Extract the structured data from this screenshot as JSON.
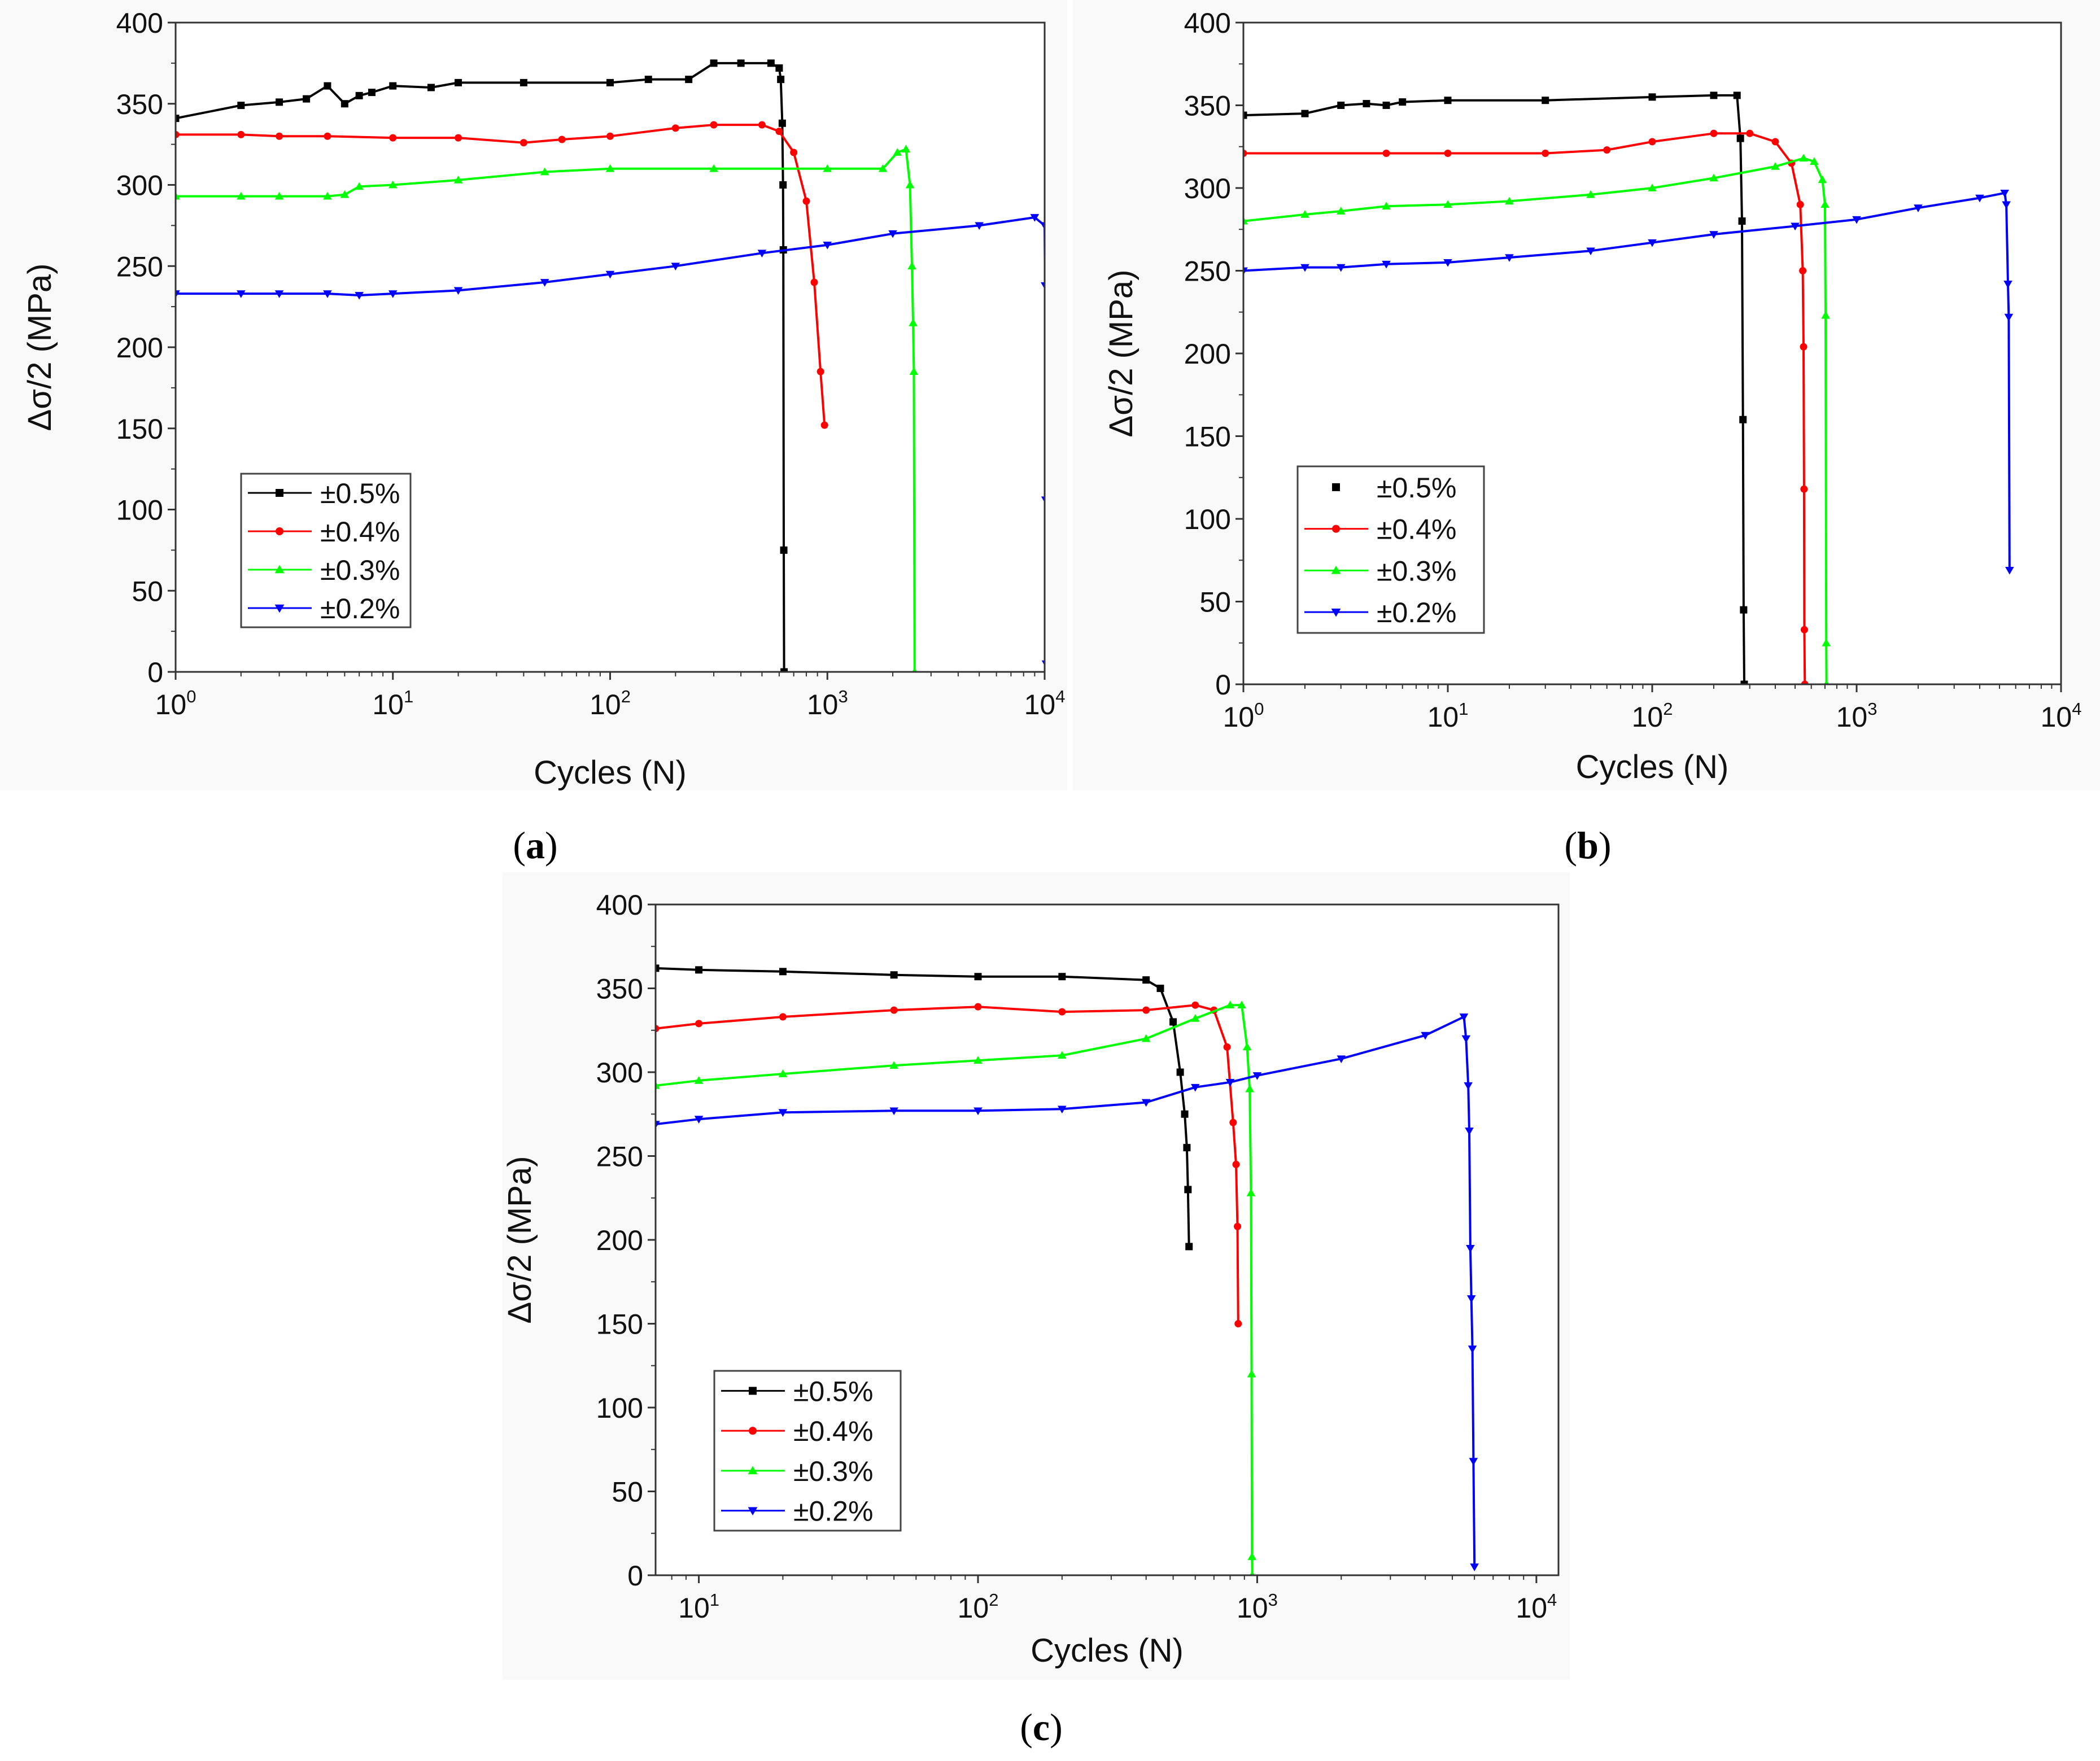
{
  "figure": {
    "panels": [
      "(a)",
      "(b)",
      "(c)"
    ]
  },
  "colors": {
    "black": "#000000",
    "red": "#ff0000",
    "green": "#00ff00",
    "blue": "#0000ff",
    "frame": "#333333"
  },
  "chart_data": [
    {
      "panel": "a",
      "caption_letter": "a",
      "type": "line",
      "xscale": "log",
      "xlabel": "Cycles (N)",
      "ylabel": "Δσ/2 (MPa)",
      "xlim": [
        1,
        10000
      ],
      "ylim": [
        0,
        400
      ],
      "xticks": [
        {
          "base": "10",
          "exp": "0",
          "value": 1
        },
        {
          "base": "10",
          "exp": "1",
          "value": 10
        },
        {
          "base": "10",
          "exp": "2",
          "value": 100
        },
        {
          "base": "10",
          "exp": "3",
          "value": 1000
        },
        {
          "base": "10",
          "exp": "4",
          "value": 10000
        }
      ],
      "yticks": [
        "0",
        "50",
        "100",
        "150",
        "200",
        "250",
        "300",
        "350",
        "400"
      ],
      "legend_position": "bottom-left",
      "legend_line_style": "line-marker",
      "series": [
        {
          "name": "±0.5%",
          "color": "#000000",
          "marker": "square",
          "points": [
            [
              1,
              341
            ],
            [
              2,
              349
            ],
            [
              3,
              351
            ],
            [
              4,
              353
            ],
            [
              5,
              361
            ],
            [
              6,
              350
            ],
            [
              7,
              355
            ],
            [
              8,
              357
            ],
            [
              10,
              361
            ],
            [
              15,
              360
            ],
            [
              20,
              363
            ],
            [
              40,
              363
            ],
            [
              100,
              363
            ],
            [
              150,
              365
            ],
            [
              230,
              365
            ],
            [
              300,
              375
            ],
            [
              400,
              375
            ],
            [
              550,
              375
            ],
            [
              600,
              372
            ],
            [
              610,
              365
            ],
            [
              620,
              338
            ],
            [
              625,
              300
            ],
            [
              627,
              260
            ],
            [
              630,
              75
            ],
            [
              632,
              0
            ]
          ]
        },
        {
          "name": "±0.4%",
          "color": "#ff0000",
          "marker": "circle",
          "points": [
            [
              1,
              331
            ],
            [
              2,
              331
            ],
            [
              3,
              330
            ],
            [
              5,
              330
            ],
            [
              10,
              329
            ],
            [
              20,
              329
            ],
            [
              40,
              326
            ],
            [
              60,
              328
            ],
            [
              100,
              330
            ],
            [
              200,
              335
            ],
            [
              300,
              337
            ],
            [
              500,
              337
            ],
            [
              600,
              333
            ],
            [
              700,
              320
            ],
            [
              800,
              290
            ],
            [
              870,
              240
            ],
            [
              930,
              185
            ],
            [
              970,
              152
            ]
          ]
        },
        {
          "name": "±0.3%",
          "color": "#00ff00",
          "marker": "triangle-up",
          "points": [
            [
              1,
              293
            ],
            [
              2,
              293
            ],
            [
              3,
              293
            ],
            [
              5,
              293
            ],
            [
              6,
              294
            ],
            [
              7,
              299
            ],
            [
              10,
              300
            ],
            [
              20,
              303
            ],
            [
              50,
              308
            ],
            [
              100,
              310
            ],
            [
              300,
              310
            ],
            [
              1000,
              310
            ],
            [
              1800,
              310
            ],
            [
              2100,
              320
            ],
            [
              2300,
              322
            ],
            [
              2400,
              300
            ],
            [
              2450,
              250
            ],
            [
              2480,
              215
            ],
            [
              2500,
              185
            ],
            [
              2520,
              0
            ]
          ]
        },
        {
          "name": "±0.2%",
          "color": "#0000ff",
          "marker": "triangle-down",
          "points": [
            [
              1,
              233
            ],
            [
              2,
              233
            ],
            [
              3,
              233
            ],
            [
              5,
              233
            ],
            [
              7,
              232
            ],
            [
              10,
              233
            ],
            [
              20,
              235
            ],
            [
              50,
              240
            ],
            [
              100,
              245
            ],
            [
              200,
              250
            ],
            [
              500,
              258
            ],
            [
              1000,
              263
            ],
            [
              2000,
              270
            ],
            [
              5000,
              275
            ],
            [
              9000,
              280
            ],
            [
              10000,
              275
            ],
            [
              10050,
              238
            ],
            [
              10100,
              106
            ],
            [
              10150,
              5
            ]
          ]
        }
      ]
    },
    {
      "panel": "b",
      "caption_letter": "b",
      "type": "line",
      "xscale": "log",
      "xlabel": "Cycles (N)",
      "ylabel": "Δσ/2 (MPa)",
      "xlim": [
        1,
        10000
      ],
      "ylim": [
        0,
        400
      ],
      "xticks": [
        {
          "base": "10",
          "exp": "0",
          "value": 1
        },
        {
          "base": "10",
          "exp": "1",
          "value": 10
        },
        {
          "base": "10",
          "exp": "2",
          "value": 100
        },
        {
          "base": "10",
          "exp": "3",
          "value": 1000
        },
        {
          "base": "10",
          "exp": "4",
          "value": 10000
        }
      ],
      "yticks": [
        "0",
        "50",
        "100",
        "150",
        "200",
        "250",
        "300",
        "350",
        "400"
      ],
      "legend_position": "bottom-left",
      "legend_line_style": "mixed",
      "series": [
        {
          "name": "±0.5%",
          "color": "#000000",
          "marker": "square",
          "points": [
            [
              1,
              344
            ],
            [
              2,
              345
            ],
            [
              3,
              350
            ],
            [
              4,
              351
            ],
            [
              5,
              350
            ],
            [
              6,
              352
            ],
            [
              10,
              353
            ],
            [
              30,
              353
            ],
            [
              100,
              355
            ],
            [
              200,
              356
            ],
            [
              260,
              356
            ],
            [
              270,
              330
            ],
            [
              275,
              280
            ],
            [
              278,
              160
            ],
            [
              280,
              45
            ],
            [
              282,
              0
            ]
          ]
        },
        {
          "name": "±0.4%",
          "color": "#ff0000",
          "marker": "circle",
          "points": [
            [
              1,
              321
            ],
            [
              5,
              321
            ],
            [
              10,
              321
            ],
            [
              30,
              321
            ],
            [
              60,
              323
            ],
            [
              100,
              328
            ],
            [
              200,
              333
            ],
            [
              300,
              333
            ],
            [
              400,
              328
            ],
            [
              480,
              315
            ],
            [
              530,
              290
            ],
            [
              545,
              250
            ],
            [
              550,
              204
            ],
            [
              553,
              118
            ],
            [
              555,
              33
            ],
            [
              558,
              0
            ]
          ]
        },
        {
          "name": "±0.3%",
          "color": "#00ff00",
          "marker": "triangle-up",
          "points": [
            [
              1,
              280
            ],
            [
              2,
              284
            ],
            [
              3,
              286
            ],
            [
              5,
              289
            ],
            [
              10,
              290
            ],
            [
              20,
              292
            ],
            [
              50,
              296
            ],
            [
              100,
              300
            ],
            [
              200,
              306
            ],
            [
              400,
              313
            ],
            [
              550,
              318
            ],
            [
              620,
              316
            ],
            [
              680,
              305
            ],
            [
              700,
              290
            ],
            [
              705,
              223
            ],
            [
              710,
              25
            ],
            [
              712,
              0
            ]
          ]
        },
        {
          "name": "±0.2%",
          "color": "#0000ff",
          "marker": "triangle-down",
          "points": [
            [
              1,
              250
            ],
            [
              2,
              252
            ],
            [
              3,
              252
            ],
            [
              5,
              254
            ],
            [
              10,
              255
            ],
            [
              20,
              258
            ],
            [
              50,
              262
            ],
            [
              100,
              267
            ],
            [
              200,
              272
            ],
            [
              500,
              277
            ],
            [
              1000,
              281
            ],
            [
              2000,
              288
            ],
            [
              4000,
              294
            ],
            [
              5300,
              297
            ],
            [
              5400,
              290
            ],
            [
              5500,
              242
            ],
            [
              5550,
              222
            ],
            [
              5600,
              69
            ]
          ]
        }
      ]
    },
    {
      "panel": "c",
      "caption_letter": "c",
      "type": "line",
      "xscale": "log",
      "xlabel": "Cycles (N)",
      "ylabel": "Δσ/2 (MPa)",
      "xlim": [
        7,
        12000
      ],
      "ylim": [
        0,
        400
      ],
      "xticks": [
        {
          "base": "10",
          "exp": "1",
          "value": 10
        },
        {
          "base": "10",
          "exp": "2",
          "value": 100
        },
        {
          "base": "10",
          "exp": "3",
          "value": 1000
        },
        {
          "base": "10",
          "exp": "4",
          "value": 10000
        }
      ],
      "yticks": [
        "0",
        "50",
        "100",
        "150",
        "200",
        "250",
        "300",
        "350",
        "400"
      ],
      "legend_position": "bottom-left",
      "legend_line_style": "line-marker",
      "series": [
        {
          "name": "±0.5%",
          "color": "#000000",
          "marker": "square",
          "points": [
            [
              7,
              362
            ],
            [
              10,
              361
            ],
            [
              20,
              360
            ],
            [
              50,
              358
            ],
            [
              100,
              357
            ],
            [
              200,
              357
            ],
            [
              400,
              355
            ],
            [
              450,
              350
            ],
            [
              500,
              330
            ],
            [
              530,
              300
            ],
            [
              550,
              275
            ],
            [
              560,
              255
            ],
            [
              565,
              230
            ],
            [
              570,
              196
            ]
          ]
        },
        {
          "name": "±0.4%",
          "color": "#ff0000",
          "marker": "circle",
          "points": [
            [
              7,
              326
            ],
            [
              10,
              329
            ],
            [
              20,
              333
            ],
            [
              50,
              337
            ],
            [
              100,
              339
            ],
            [
              200,
              336
            ],
            [
              400,
              337
            ],
            [
              600,
              340
            ],
            [
              700,
              337
            ],
            [
              780,
              315
            ],
            [
              820,
              270
            ],
            [
              840,
              245
            ],
            [
              850,
              208
            ],
            [
              855,
              150
            ]
          ]
        },
        {
          "name": "±0.3%",
          "color": "#00ff00",
          "marker": "triangle-up",
          "points": [
            [
              7,
              292
            ],
            [
              10,
              295
            ],
            [
              20,
              299
            ],
            [
              50,
              304
            ],
            [
              100,
              307
            ],
            [
              200,
              310
            ],
            [
              400,
              320
            ],
            [
              600,
              332
            ],
            [
              800,
              340
            ],
            [
              880,
              340
            ],
            [
              920,
              315
            ],
            [
              940,
              290
            ],
            [
              950,
              228
            ],
            [
              955,
              120
            ],
            [
              958,
              11
            ],
            [
              960,
              0
            ]
          ]
        },
        {
          "name": "±0.2%",
          "color": "#0000ff",
          "marker": "triangle-down",
          "points": [
            [
              7,
              269
            ],
            [
              10,
              272
            ],
            [
              20,
              276
            ],
            [
              50,
              277
            ],
            [
              100,
              277
            ],
            [
              200,
              278
            ],
            [
              400,
              282
            ],
            [
              600,
              291
            ],
            [
              800,
              294
            ],
            [
              1000,
              298
            ],
            [
              2000,
              308
            ],
            [
              4000,
              322
            ],
            [
              5500,
              333
            ],
            [
              5600,
              320
            ],
            [
              5700,
              292
            ],
            [
              5750,
              265
            ],
            [
              5800,
              195
            ],
            [
              5850,
              165
            ],
            [
              5900,
              135
            ],
            [
              5950,
              68
            ],
            [
              6000,
              5
            ]
          ]
        }
      ]
    }
  ]
}
